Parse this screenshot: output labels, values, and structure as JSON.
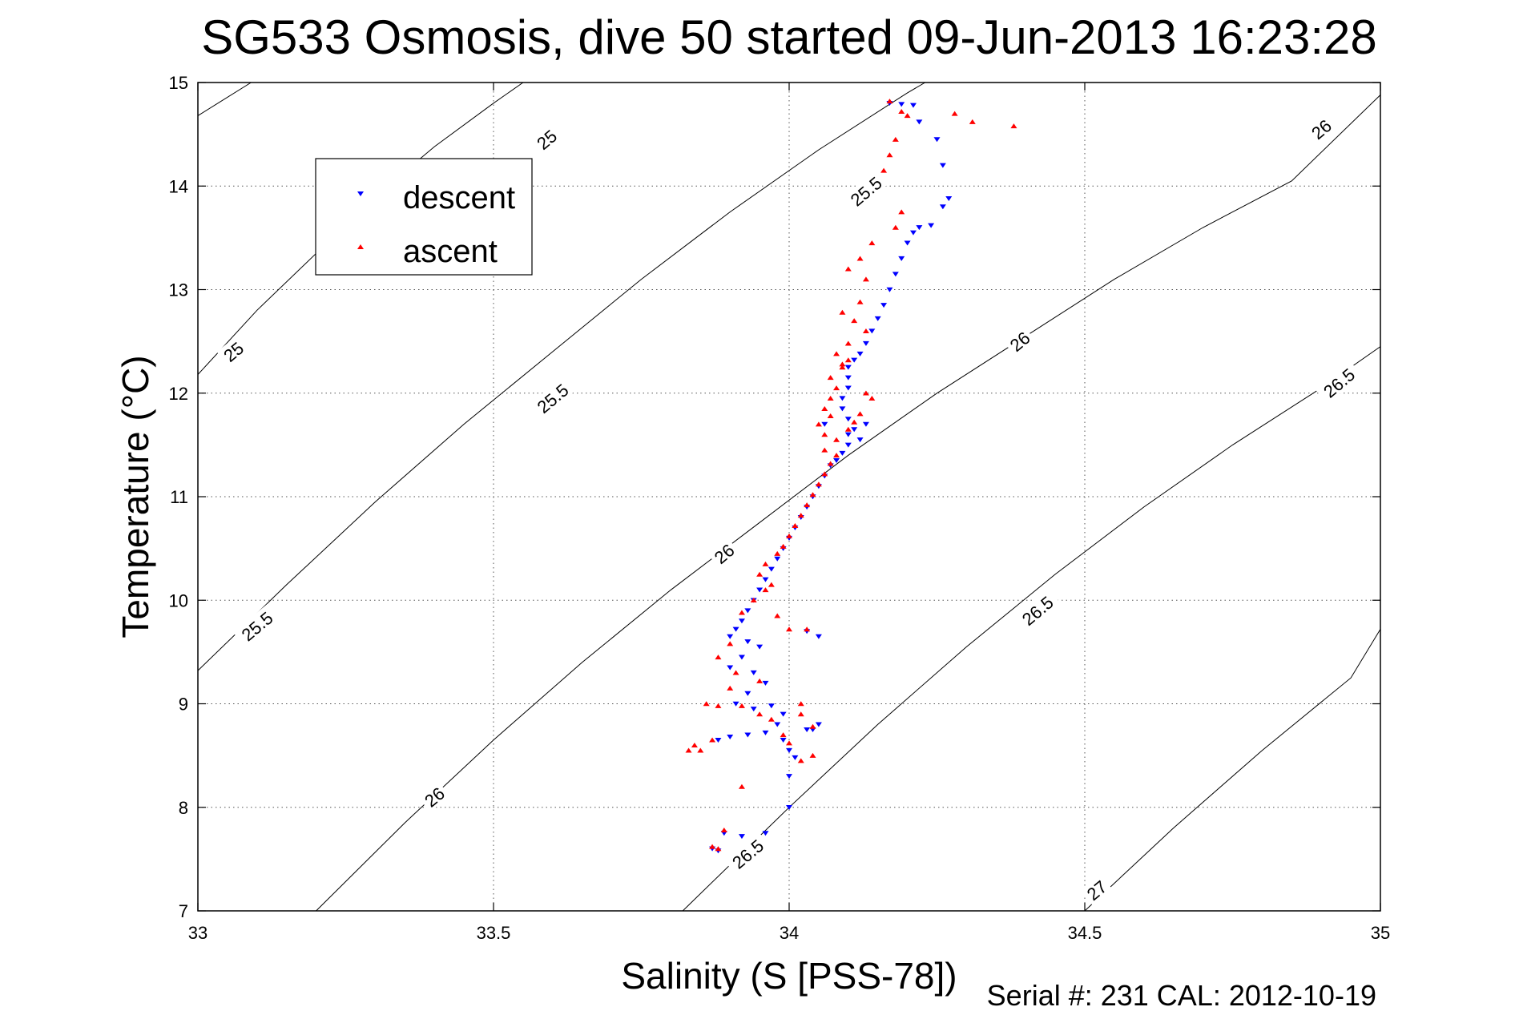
{
  "chart_data": {
    "type": "scatter",
    "title": "SG533 Osmosis, dive 50 started 09-Jun-2013 16:23:28",
    "xlabel": "Salinity (S [PSS-78])",
    "ylabel": "Temperature (°C)",
    "footer": "Serial #: 231  CAL: 2012-10-19",
    "xlim": [
      33,
      35
    ],
    "ylim": [
      7,
      15
    ],
    "xticks": [
      "33",
      "33.5",
      "34",
      "34.5",
      "35"
    ],
    "yticks": [
      "7",
      "8",
      "9",
      "10",
      "11",
      "12",
      "13",
      "14",
      "15"
    ],
    "grid": true,
    "legend_position": "top-left",
    "contours": [
      {
        "level": 25,
        "label": "25",
        "points": [
          [
            33.0,
            14.68
          ],
          [
            33.09,
            15.0
          ]
        ]
      },
      {
        "level": 25,
        "label": "25",
        "points": [
          [
            33.0,
            12.18
          ],
          [
            33.1,
            12.8
          ],
          [
            33.2,
            13.35
          ],
          [
            33.3,
            13.9
          ],
          [
            33.4,
            14.38
          ],
          [
            33.5,
            14.8
          ],
          [
            33.55,
            15.0
          ]
        ]
      },
      {
        "level": 25.5,
        "label": "25.5",
        "points": [
          [
            33.0,
            9.32
          ],
          [
            33.15,
            10.15
          ],
          [
            33.3,
            10.95
          ],
          [
            33.45,
            11.7
          ],
          [
            33.6,
            12.4
          ],
          [
            33.75,
            13.1
          ],
          [
            33.9,
            13.75
          ],
          [
            34.05,
            14.35
          ],
          [
            34.2,
            14.9
          ],
          [
            34.23,
            15.0
          ]
        ]
      },
      {
        "level": 26,
        "label": "26",
        "points": [
          [
            33.2,
            7.0
          ],
          [
            33.35,
            7.85
          ],
          [
            33.5,
            8.65
          ],
          [
            33.65,
            9.4
          ],
          [
            33.8,
            10.1
          ],
          [
            33.95,
            10.75
          ],
          [
            34.1,
            11.4
          ],
          [
            34.25,
            12.0
          ],
          [
            34.4,
            12.55
          ],
          [
            34.55,
            13.1
          ],
          [
            34.7,
            13.6
          ],
          [
            34.85,
            14.05
          ],
          [
            35.0,
            14.88
          ]
        ]
      },
      {
        "level": 26.5,
        "label": "26.5",
        "points": [
          [
            33.82,
            7.0
          ],
          [
            34.0,
            8.0
          ],
          [
            34.15,
            8.8
          ],
          [
            34.3,
            9.55
          ],
          [
            34.45,
            10.25
          ],
          [
            34.6,
            10.9
          ],
          [
            34.75,
            11.5
          ],
          [
            34.9,
            12.05
          ],
          [
            35.0,
            12.45
          ]
        ]
      },
      {
        "level": 27,
        "label": "27",
        "points": [
          [
            34.5,
            7.0
          ],
          [
            34.65,
            7.8
          ],
          [
            34.8,
            8.55
          ],
          [
            34.95,
            9.25
          ],
          [
            35.0,
            9.72
          ]
        ]
      }
    ],
    "contour_labels": [
      {
        "text": "25",
        "x": 33.59,
        "y": 14.45
      },
      {
        "text": "25",
        "x": 33.06,
        "y": 12.4
      },
      {
        "text": "25.5",
        "x": 34.13,
        "y": 13.95
      },
      {
        "text": "25.5",
        "x": 33.6,
        "y": 11.95
      },
      {
        "text": "25.5",
        "x": 33.1,
        "y": 9.75
      },
      {
        "text": "26",
        "x": 34.9,
        "y": 14.55
      },
      {
        "text": "26",
        "x": 34.39,
        "y": 12.5
      },
      {
        "text": "26",
        "x": 33.89,
        "y": 10.45
      },
      {
        "text": "26",
        "x": 33.4,
        "y": 8.1
      },
      {
        "text": "26.5",
        "x": 34.93,
        "y": 12.1
      },
      {
        "text": "26.5",
        "x": 34.42,
        "y": 9.9
      },
      {
        "text": "26.5",
        "x": 33.93,
        "y": 7.55
      },
      {
        "text": "27",
        "x": 34.52,
        "y": 7.2
      }
    ],
    "series": [
      {
        "name": "descent",
        "color": "#0000ff",
        "marker": "triangle-down",
        "points": [
          [
            34.17,
            14.8
          ],
          [
            34.19,
            14.79
          ],
          [
            34.21,
            14.78
          ],
          [
            34.22,
            14.62
          ],
          [
            34.25,
            14.45
          ],
          [
            34.26,
            14.2
          ],
          [
            34.27,
            13.88
          ],
          [
            34.26,
            13.8
          ],
          [
            34.24,
            13.62
          ],
          [
            34.22,
            13.6
          ],
          [
            34.21,
            13.55
          ],
          [
            34.2,
            13.45
          ],
          [
            34.19,
            13.3
          ],
          [
            34.18,
            13.15
          ],
          [
            34.17,
            13.0
          ],
          [
            34.16,
            12.85
          ],
          [
            34.15,
            12.72
          ],
          [
            34.14,
            12.6
          ],
          [
            34.13,
            12.48
          ],
          [
            34.12,
            12.38
          ],
          [
            34.11,
            12.32
          ],
          [
            34.1,
            12.25
          ],
          [
            34.1,
            12.15
          ],
          [
            34.1,
            12.05
          ],
          [
            34.09,
            11.95
          ],
          [
            34.09,
            11.85
          ],
          [
            34.1,
            11.75
          ],
          [
            34.11,
            11.65
          ],
          [
            34.12,
            11.55
          ],
          [
            34.1,
            11.5
          ],
          [
            34.09,
            11.42
          ],
          [
            34.08,
            11.35
          ],
          [
            34.07,
            11.3
          ],
          [
            34.06,
            11.2
          ],
          [
            34.05,
            11.1
          ],
          [
            34.04,
            11.0
          ],
          [
            34.03,
            10.9
          ],
          [
            34.02,
            10.8
          ],
          [
            34.01,
            10.7
          ],
          [
            34.0,
            10.6
          ],
          [
            33.99,
            10.5
          ],
          [
            33.98,
            10.4
          ],
          [
            33.97,
            10.3
          ],
          [
            33.96,
            10.2
          ],
          [
            33.95,
            10.1
          ],
          [
            33.94,
            10.0
          ],
          [
            33.93,
            9.9
          ],
          [
            33.92,
            9.8
          ],
          [
            33.91,
            9.72
          ],
          [
            33.9,
            9.65
          ],
          [
            33.93,
            9.6
          ],
          [
            33.95,
            9.55
          ],
          [
            33.92,
            9.45
          ],
          [
            33.9,
            9.35
          ],
          [
            33.94,
            9.3
          ],
          [
            33.96,
            9.2
          ],
          [
            33.93,
            9.1
          ],
          [
            33.91,
            9.0
          ],
          [
            33.94,
            8.95
          ],
          [
            33.97,
            8.98
          ],
          [
            33.99,
            8.9
          ],
          [
            33.98,
            8.8
          ],
          [
            33.96,
            8.72
          ],
          [
            33.93,
            8.7
          ],
          [
            33.9,
            8.68
          ],
          [
            33.88,
            8.65
          ],
          [
            33.99,
            8.65
          ],
          [
            34.0,
            8.55
          ],
          [
            34.01,
            8.48
          ],
          [
            34.0,
            8.3
          ],
          [
            34.0,
            8.0
          ],
          [
            34.04,
            8.75
          ],
          [
            34.05,
            8.8
          ],
          [
            34.03,
            8.75
          ],
          [
            34.05,
            9.65
          ],
          [
            34.03,
            9.7
          ],
          [
            34.06,
            11.7
          ],
          [
            34.1,
            11.6
          ],
          [
            34.13,
            11.7
          ],
          [
            33.89,
            7.75
          ],
          [
            33.92,
            7.72
          ],
          [
            33.96,
            7.75
          ],
          [
            33.87,
            7.6
          ],
          [
            33.88,
            7.58
          ]
        ]
      },
      {
        "name": "ascent",
        "color": "#ff0000",
        "marker": "triangle-up",
        "points": [
          [
            34.17,
            14.82
          ],
          [
            34.19,
            14.72
          ],
          [
            34.2,
            14.68
          ],
          [
            34.28,
            14.7
          ],
          [
            34.31,
            14.62
          ],
          [
            34.38,
            14.58
          ],
          [
            34.18,
            14.45
          ],
          [
            34.17,
            14.3
          ],
          [
            34.16,
            14.15
          ],
          [
            34.19,
            13.75
          ],
          [
            34.18,
            13.6
          ],
          [
            34.14,
            13.45
          ],
          [
            34.12,
            13.3
          ],
          [
            34.1,
            13.2
          ],
          [
            34.13,
            13.1
          ],
          [
            34.12,
            12.88
          ],
          [
            34.09,
            12.78
          ],
          [
            34.11,
            12.7
          ],
          [
            34.13,
            12.6
          ],
          [
            34.1,
            12.48
          ],
          [
            34.08,
            12.38
          ],
          [
            34.09,
            12.25
          ],
          [
            34.07,
            12.15
          ],
          [
            34.08,
            12.05
          ],
          [
            34.07,
            11.95
          ],
          [
            34.06,
            11.85
          ],
          [
            34.07,
            11.78
          ],
          [
            34.05,
            11.7
          ],
          [
            34.06,
            11.6
          ],
          [
            34.1,
            11.65
          ],
          [
            34.12,
            11.8
          ],
          [
            34.14,
            11.95
          ],
          [
            34.13,
            12.0
          ],
          [
            34.11,
            11.72
          ],
          [
            34.08,
            11.4
          ],
          [
            34.07,
            11.32
          ],
          [
            34.06,
            11.22
          ],
          [
            34.05,
            11.12
          ],
          [
            34.04,
            11.02
          ],
          [
            34.03,
            10.92
          ],
          [
            34.02,
            10.82
          ],
          [
            34.01,
            10.72
          ],
          [
            34.0,
            10.62
          ],
          [
            33.99,
            10.52
          ],
          [
            33.98,
            10.45
          ],
          [
            33.96,
            10.35
          ],
          [
            33.95,
            10.25
          ],
          [
            33.97,
            10.15
          ],
          [
            33.96,
            10.1
          ],
          [
            33.94,
            10.0
          ],
          [
            33.92,
            9.88
          ],
          [
            33.98,
            9.85
          ],
          [
            34.0,
            9.72
          ],
          [
            34.03,
            9.72
          ],
          [
            33.9,
            9.58
          ],
          [
            33.88,
            9.45
          ],
          [
            33.91,
            9.3
          ],
          [
            33.95,
            9.22
          ],
          [
            33.9,
            9.15
          ],
          [
            33.92,
            8.98
          ],
          [
            33.95,
            8.9
          ],
          [
            33.97,
            8.85
          ],
          [
            33.99,
            8.7
          ],
          [
            34.0,
            8.62
          ],
          [
            34.02,
            8.9
          ],
          [
            34.02,
            9.0
          ],
          [
            33.86,
            9.0
          ],
          [
            33.88,
            8.98
          ],
          [
            33.85,
            8.55
          ],
          [
            33.84,
            8.6
          ],
          [
            33.83,
            8.55
          ],
          [
            33.87,
            8.65
          ],
          [
            34.02,
            8.45
          ],
          [
            34.04,
            8.5
          ],
          [
            34.04,
            8.78
          ],
          [
            33.92,
            8.2
          ],
          [
            33.89,
            7.78
          ],
          [
            33.87,
            7.62
          ],
          [
            33.88,
            7.6
          ],
          [
            34.06,
            11.45
          ],
          [
            34.08,
            11.55
          ],
          [
            34.09,
            12.28
          ],
          [
            34.1,
            12.32
          ]
        ]
      }
    ]
  }
}
